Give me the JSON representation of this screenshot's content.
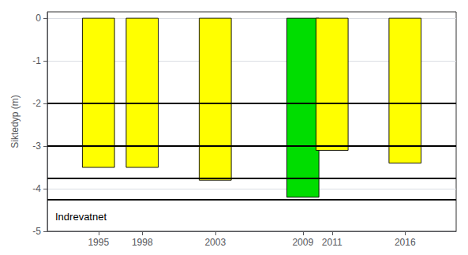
{
  "chart_data": {
    "type": "bar",
    "x": [
      1995,
      1998,
      2003,
      2009,
      2011,
      2016
    ],
    "values": [
      -3.5,
      -3.5,
      -3.8,
      -4.2,
      -3.1,
      -3.4
    ],
    "colors": [
      "#FFFF00",
      "#FFFF00",
      "#FFFF00",
      "#00DD00",
      "#FFFF00",
      "#FFFF00"
    ],
    "ylabel": "Siktedyp (m)",
    "xlim": [
      1991.5,
      2019.5
    ],
    "xticks": [
      1995,
      1998,
      2003,
      2009,
      2011,
      2016
    ],
    "ylim": [
      -5.0,
      0.15
    ],
    "yticks": [
      0,
      -1,
      -2,
      -3,
      -4,
      -5
    ],
    "grid": true,
    "reference_lines": [
      -2.0,
      -3.0,
      -3.75,
      -4.25
    ],
    "annotation": "Indrevatnet"
  }
}
